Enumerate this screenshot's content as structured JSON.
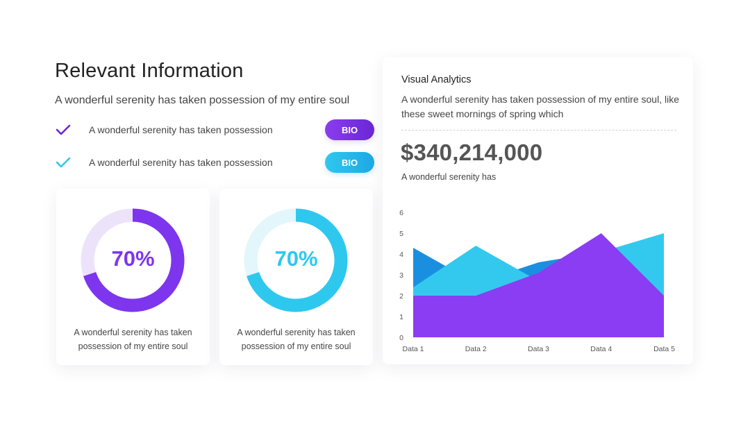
{
  "left": {
    "title": "Relevant Information",
    "subtitle": "A wonderful serenity has taken possession of my entire soul",
    "items": [
      {
        "text": "A wonderful serenity has taken possession",
        "button": "BIO",
        "color": "#6a26d6"
      },
      {
        "text": "A wonderful serenity has taken possession",
        "button": "BIO",
        "color": "#2ec8ee"
      }
    ]
  },
  "cards": [
    {
      "percent_label": "70%",
      "value": 0.7,
      "caption": "A wonderful serenity has taken possession of my entire soul",
      "color": "#7d35ee",
      "track": "#ece3fb"
    },
    {
      "percent_label": "70%",
      "value": 0.7,
      "caption": "A wonderful serenity has taken possession of my entire soul",
      "color": "#2ec8ee",
      "track": "#e2f6fc"
    }
  ],
  "analytics": {
    "title": "Visual Analytics",
    "description": "A wonderful serenity has taken possession of my entire soul, like these sweet mornings of spring which",
    "amount": "$340,214,000",
    "amount_caption": "A wonderful serenity has"
  },
  "chart_data": {
    "type": "area",
    "categories": [
      "Data 1",
      "Data 2",
      "Data 3",
      "Data 4",
      "Data 5"
    ],
    "ylim": [
      0,
      6
    ],
    "yticks": [
      0,
      1,
      2,
      3,
      4,
      5,
      6
    ],
    "series": [
      {
        "values": [
          4.3,
          2.6,
          3.6,
          4.1,
          3.7
        ],
        "color": "#1a8fe0"
      },
      {
        "values": [
          2.4,
          4.4,
          2.7,
          4.1,
          5.0
        ],
        "color": "#33c9ee"
      },
      {
        "values": [
          2.0,
          2.0,
          3.1,
          5.0,
          2.0
        ],
        "color": "#8a3df2"
      }
    ],
    "grid": false,
    "legend": "none"
  }
}
